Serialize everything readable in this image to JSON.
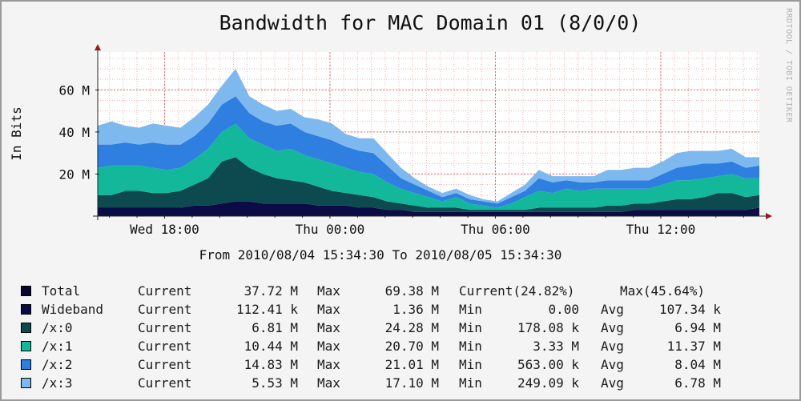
{
  "chart_data": {
    "type": "area",
    "stacked": true,
    "title": "Bandwidth for MAC Domain 01 (8/0/0)",
    "ylabel": "In Bits",
    "watermark": "RRDTOOL / TOBI OETIKER",
    "range_text": "From 2010/08/04 15:34:30 To 2010/08/05 15:34:30",
    "ylim": [
      0,
      78
    ],
    "yticks": [
      {
        "value": 20,
        "label": "20 M"
      },
      {
        "value": 40,
        "label": "40 M"
      },
      {
        "value": 60,
        "label": "60 M"
      }
    ],
    "xlim": [
      0,
      24
    ],
    "xticks": [
      {
        "value": 2.425,
        "label": "Wed 18:00"
      },
      {
        "value": 8.425,
        "label": "Thu 00:00"
      },
      {
        "value": 14.425,
        "label": "Thu 06:00"
      },
      {
        "value": 20.425,
        "label": "Thu 12:00"
      }
    ],
    "x_unit": "hours since 2010/08/04 15:34:30",
    "x": [
      0,
      0.5,
      1,
      1.5,
      2,
      2.5,
      3,
      3.5,
      4,
      4.5,
      5,
      5.5,
      6,
      6.5,
      7,
      7.5,
      8,
      8.5,
      9,
      9.5,
      10,
      10.5,
      11,
      11.5,
      12,
      12.5,
      13,
      13.5,
      14,
      14.5,
      15,
      15.5,
      16,
      16.5,
      17,
      17.5,
      18,
      18.5,
      19,
      19.5,
      20,
      20.5,
      21,
      21.5,
      22,
      22.5,
      23,
      23.5,
      24
    ],
    "series": [
      {
        "name": "Wideband",
        "color": "#0b0b45",
        "values": [
          4,
          4,
          4,
          4,
          4,
          4,
          4,
          5,
          5,
          6,
          7,
          7,
          6,
          6,
          6,
          6,
          5,
          5,
          5,
          4,
          4,
          3,
          3,
          2,
          2,
          2,
          2,
          2,
          2,
          2,
          2,
          2,
          2,
          2,
          2,
          2,
          2,
          2,
          2,
          3,
          3,
          3,
          3,
          3,
          3,
          3,
          3,
          3,
          4
        ]
      },
      {
        "name": "/x:0",
        "color": "#0c4a50",
        "values": [
          6,
          6,
          8,
          8,
          7,
          7,
          8,
          10,
          13,
          20,
          21,
          16,
          14,
          12,
          11,
          10,
          9,
          7,
          6,
          6,
          5,
          4,
          3,
          3,
          2,
          2,
          2,
          1,
          1,
          1,
          1,
          1,
          2,
          2,
          2,
          2,
          2,
          3,
          3,
          3,
          3,
          4,
          5,
          5,
          6,
          8,
          8,
          6,
          6
        ]
      },
      {
        "name": "/x:1",
        "color": "#13b89b",
        "values": [
          13,
          14,
          12,
          12,
          12,
          11,
          11,
          12,
          14,
          14,
          16,
          14,
          14,
          13,
          15,
          13,
          13,
          13,
          12,
          11,
          11,
          9,
          7,
          6,
          5,
          3,
          5,
          3,
          2,
          1,
          3,
          6,
          8,
          7,
          9,
          8,
          9,
          8,
          8,
          7,
          7,
          8,
          9,
          9,
          9,
          8,
          9,
          9,
          8
        ]
      },
      {
        "name": "/x:2",
        "color": "#2e7fe0",
        "values": [
          11,
          10,
          11,
          10,
          12,
          12,
          11,
          11,
          12,
          13,
          13,
          12,
          11,
          12,
          12,
          11,
          11,
          11,
          10,
          10,
          10,
          8,
          5,
          4,
          3,
          2,
          2,
          2,
          2,
          2,
          3,
          3,
          6,
          5,
          4,
          4,
          3,
          4,
          4,
          4,
          4,
          5,
          6,
          7,
          7,
          6,
          6,
          5,
          6
        ]
      },
      {
        "name": "/x:3",
        "color": "#7db8ef",
        "values": [
          9,
          11,
          8,
          8,
          9,
          9,
          8,
          9,
          9,
          9,
          13,
          8,
          8,
          7,
          7,
          7,
          8,
          8,
          6,
          6,
          7,
          6,
          5,
          3,
          2,
          2,
          2,
          2,
          1,
          1,
          2,
          3,
          4,
          3,
          2,
          3,
          3,
          5,
          5,
          6,
          6,
          6,
          7,
          7,
          6,
          6,
          6,
          5,
          4
        ]
      }
    ]
  },
  "legend": [
    {
      "color": "#050530",
      "name": "Total",
      "label1": "Current",
      "val1": "37.72 M",
      "label2": "Max",
      "val2": "69.38 M",
      "pct1": "Current(24.82%)",
      "pct2": "Max(45.64%)"
    },
    {
      "color": "#0b0b45",
      "name": "Wideband",
      "label1": "Current",
      "val1": "112.41 k",
      "label2": "Max",
      "val2": "1.36 M",
      "label3": "Min",
      "val3": "0.00",
      "label4": "Avg",
      "val4": "107.34 k"
    },
    {
      "color": "#0c4a50",
      "name": "/x:0",
      "label1": "Current",
      "val1": "6.81 M",
      "label2": "Max",
      "val2": "24.28 M",
      "label3": "Min",
      "val3": "178.08 k",
      "label4": "Avg",
      "val4": "6.94 M"
    },
    {
      "color": "#13b89b",
      "name": "/x:1",
      "label1": "Current",
      "val1": "10.44 M",
      "label2": "Max",
      "val2": "20.70 M",
      "label3": "Min",
      "val3": "3.33 M",
      "label4": "Avg",
      "val4": "11.37 M"
    },
    {
      "color": "#2e7fe0",
      "name": "/x:2",
      "label1": "Current",
      "val1": "14.83 M",
      "label2": "Max",
      "val2": "21.01 M",
      "label3": "Min",
      "val3": "563.00 k",
      "label4": "Avg",
      "val4": "8.04 M"
    },
    {
      "color": "#7db8ef",
      "name": "/x:3",
      "label1": "Current",
      "val1": "5.53 M",
      "label2": "Max",
      "val2": "17.10 M",
      "label3": "Min",
      "val3": "249.09 k",
      "label4": "Avg",
      "val4": "6.78 M"
    }
  ]
}
